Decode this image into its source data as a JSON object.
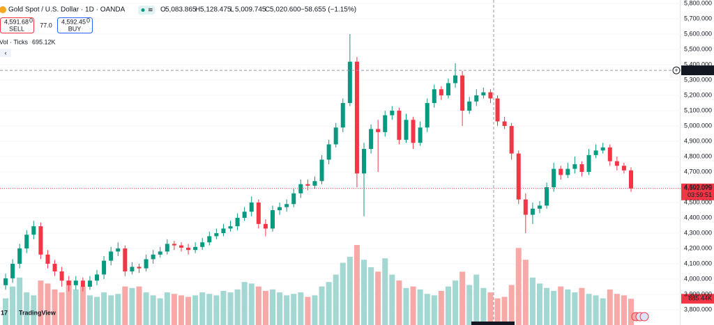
{
  "chart_data": {
    "type": "candlestick",
    "title": "Gold Spot / U.S. Dollar · 1D · OANDA",
    "ohlc_header": {
      "labels": [
        "O",
        "H",
        "L",
        "C"
      ],
      "values": [
        "5,083.865",
        "5,128.475",
        "5,009.745",
        "5,020.600"
      ],
      "change": "−58.655 (−1.15%)"
    },
    "trade": {
      "sell_price": "4,591.68",
      "sell_sup": "0",
      "sell_label": "SELL",
      "spread": "77.0",
      "buy_price": "4,592.45",
      "buy_sup": "0",
      "buy_label": "BUY"
    },
    "volume_legend": {
      "label": "Vol · Ticks",
      "value": "695.12K"
    },
    "logo": "TradingView",
    "colors": {
      "up": "#089981",
      "down": "#f23645",
      "volume_up": "#a3d7d1",
      "volume_down": "#f7a9a7"
    },
    "ylim": [
      3700,
      5823
    ],
    "yticks": [
      {
        "value": 3800,
        "label": "3,800.000"
      },
      {
        "value": 3900,
        "label": "3,900.000"
      },
      {
        "value": 4000,
        "label": "4,000.000"
      },
      {
        "value": 4100,
        "label": "4,100.000"
      },
      {
        "value": 4200,
        "label": "4,200.000"
      },
      {
        "value": 4300,
        "label": "4,300.000"
      },
      {
        "value": 4400,
        "label": "4,400.000"
      },
      {
        "value": 4500,
        "label": "4,500.000"
      },
      {
        "value": 4600,
        "label": "4,600.000"
      },
      {
        "value": 4700,
        "label": "4,700.000"
      },
      {
        "value": 4800,
        "label": "4,800.000"
      },
      {
        "value": 4900,
        "label": "4,900.000"
      },
      {
        "value": 5000,
        "label": "5,000.000"
      },
      {
        "value": 5100,
        "label": "5,100.000"
      },
      {
        "value": 5200,
        "label": "5,200.000"
      },
      {
        "value": 5300,
        "label": "5,300.000"
      },
      {
        "value": 5400,
        "label": "5,400.000"
      },
      {
        "value": 5500,
        "label": "5,500.000"
      },
      {
        "value": 5600,
        "label": "5,600.000"
      },
      {
        "value": 5700,
        "label": "5,700.000"
      },
      {
        "value": 5800,
        "label": "5,800.000"
      }
    ],
    "crosshair": {
      "value": 5363.557,
      "label": "5,363.557"
    },
    "last_price": {
      "value": 4592.075,
      "label": "4,592.075",
      "countdown": "03:59:51"
    },
    "last_volume_label": "885.44K",
    "open": [
      3960,
      4005,
      4100,
      4200,
      4290,
      4345,
      4160,
      4100,
      4050,
      3990,
      3960,
      3990,
      3950,
      3990,
      4030,
      4120,
      4180,
      4200,
      4050,
      4080,
      4070,
      4130,
      4160,
      4180,
      4230,
      4220,
      4205,
      4190,
      4210,
      4240,
      4280,
      4300,
      4330,
      4345,
      4400,
      4440,
      4500,
      4360,
      4330,
      4450,
      4470,
      4490,
      4560,
      4620,
      4610,
      4640,
      4780,
      4880,
      4990,
      5150,
      5420,
      4690,
      4850,
      4980,
      4960,
      5070,
      5100,
      4910,
      5040,
      4890,
      4990,
      5150,
      5240,
      5200,
      5280,
      5330,
      5100,
      5160,
      5200,
      5220,
      5180,
      5030,
      5000,
      4820,
      4520,
      4420,
      4460,
      4480,
      4600,
      4720,
      4680,
      4720,
      4750,
      4700,
      4810,
      4840,
      4860,
      4770,
      4740,
      4710
    ],
    "high": [
      4035,
      4130,
      4230,
      4320,
      4380,
      4370,
      4190,
      4125,
      4080,
      4020,
      4020,
      4010,
      4020,
      4060,
      4150,
      4210,
      4240,
      4220,
      4110,
      4100,
      4160,
      4190,
      4210,
      4260,
      4250,
      4240,
      4230,
      4240,
      4270,
      4310,
      4330,
      4360,
      4380,
      4430,
      4470,
      4540,
      4520,
      4390,
      4480,
      4500,
      4520,
      4590,
      4650,
      4650,
      4670,
      4810,
      4910,
      5020,
      5180,
      5600,
      5450,
      4890,
      5010,
      5040,
      5100,
      5130,
      5120,
      5080,
      5060,
      5030,
      5180,
      5270,
      5260,
      5310,
      5410,
      5360,
      5190,
      5240,
      5250,
      5240,
      5200,
      5060,
      5020,
      4840,
      4560,
      4500,
      4510,
      4630,
      4760,
      4740,
      4760,
      4800,
      4770,
      4850,
      4880,
      4890,
      4880,
      4800,
      4760,
      4730
    ],
    "low": [
      3930,
      3975,
      4070,
      4170,
      4260,
      4130,
      4070,
      4020,
      3950,
      3920,
      3930,
      3920,
      3930,
      3960,
      4000,
      4090,
      4150,
      4020,
      4030,
      4040,
      4050,
      4100,
      4140,
      4160,
      4190,
      4180,
      4160,
      4170,
      4190,
      4220,
      4260,
      4280,
      4310,
      4320,
      4380,
      4410,
      4330,
      4280,
      4310,
      4420,
      4440,
      4470,
      4530,
      4580,
      4590,
      4620,
      4750,
      4860,
      4960,
      5130,
      4600,
      4410,
      4820,
      4700,
      4930,
      5040,
      4880,
      4890,
      4850,
      4870,
      4960,
      5120,
      5170,
      5180,
      5250,
      5000,
      5080,
      5130,
      5180,
      5150,
      5000,
      4980,
      4780,
      4490,
      4300,
      4360,
      4430,
      4460,
      4570,
      4650,
      4660,
      4690,
      4670,
      4680,
      4790,
      4820,
      4740,
      4710,
      4690,
      4570
    ],
    "close": [
      4005,
      4100,
      4200,
      4290,
      4345,
      4160,
      4100,
      4050,
      3990,
      3960,
      3990,
      3950,
      3990,
      4030,
      4120,
      4180,
      4200,
      4050,
      4080,
      4070,
      4130,
      4160,
      4180,
      4230,
      4220,
      4205,
      4190,
      4210,
      4240,
      4280,
      4300,
      4330,
      4345,
      4400,
      4440,
      4500,
      4360,
      4330,
      4450,
      4470,
      4490,
      4560,
      4620,
      4610,
      4640,
      4780,
      4880,
      4990,
      5150,
      5420,
      4690,
      4850,
      4980,
      4960,
      5070,
      5100,
      4910,
      5040,
      4890,
      4990,
      5150,
      5240,
      5200,
      5280,
      5330,
      5100,
      5160,
      5200,
      5220,
      5180,
      5030,
      5000,
      4820,
      4520,
      4420,
      4460,
      4480,
      4600,
      4720,
      4680,
      4720,
      4750,
      4700,
      4810,
      4840,
      4860,
      4770,
      4740,
      4710,
      4592.075
    ],
    "volume": [
      900,
      1300,
      1600,
      1100,
      1000,
      1500,
      1400,
      1200,
      1100,
      1500,
      1200,
      1300,
      1000,
      950,
      1100,
      1000,
      1050,
      1300,
      1250,
      1300,
      1100,
      1000,
      900,
      1100,
      1050,
      1000,
      950,
      1000,
      1100,
      1050,
      1000,
      1150,
      1100,
      1200,
      1450,
      1400,
      1300,
      1150,
      1200,
      1100,
      1000,
      1050,
      1100,
      950,
      1000,
      1300,
      1450,
      1700,
      2100,
      2300,
      2700,
      2200,
      1950,
      1800,
      2250,
      1700,
      1500,
      1250,
      1300,
      1200,
      1050,
      1000,
      1150,
      1300,
      1500,
      1800,
      1350,
      1700,
      1250,
      1100,
      900,
      950,
      1350,
      2600,
      2200,
      1600,
      1400,
      1250,
      1150,
      1300,
      1200,
      1100,
      1250,
      1050,
      1000,
      900,
      1200,
      1050,
      1000,
      885.44
    ]
  }
}
